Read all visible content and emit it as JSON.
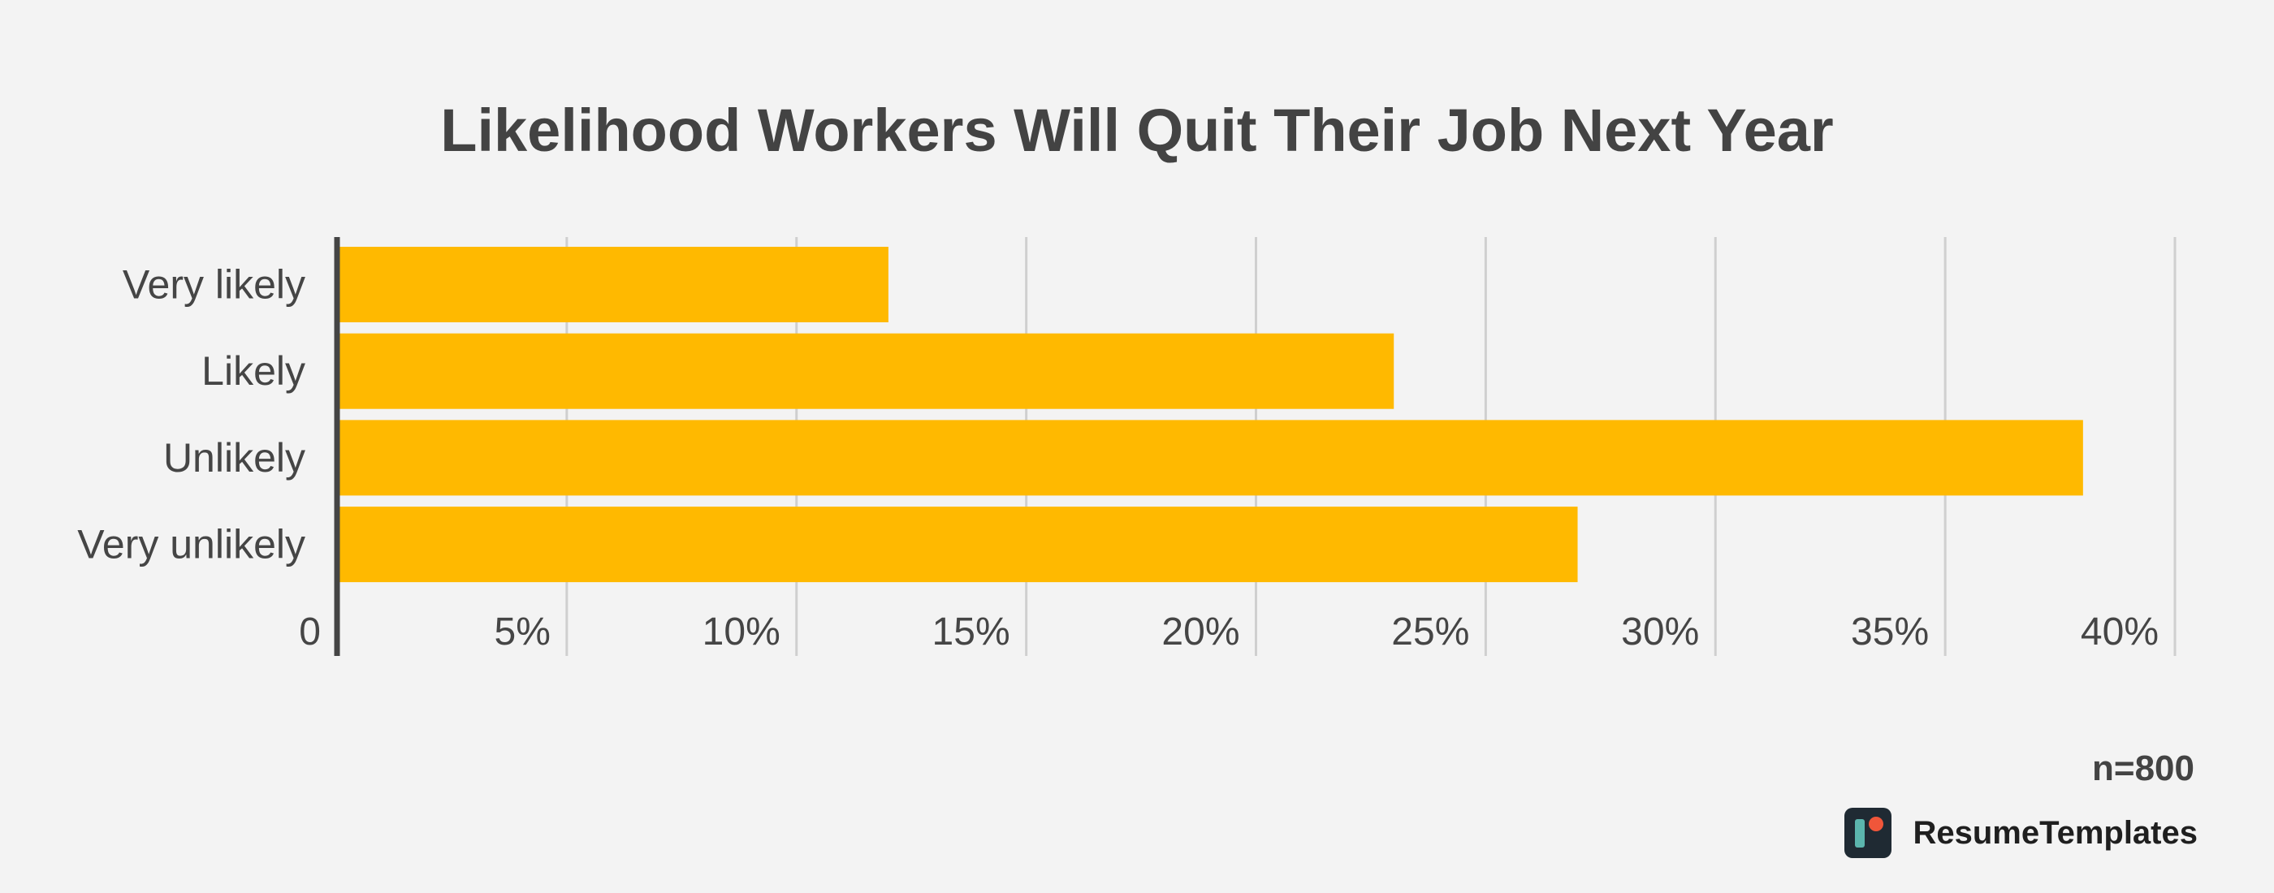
{
  "chart_data": {
    "type": "bar",
    "orientation": "horizontal",
    "title": "Likelihood Workers Will Quit Their Job Next Year",
    "categories": [
      "Very likely",
      "Likely",
      "Unlikely",
      "Very unlikely"
    ],
    "values": [
      12,
      23,
      38,
      27
    ],
    "unit": "%",
    "xlim": [
      0,
      40
    ],
    "xticks": [
      0,
      5,
      10,
      15,
      20,
      25,
      30,
      35,
      40
    ],
    "xtick_labels": [
      "0",
      "5%",
      "10%",
      "15%",
      "20%",
      "25%",
      "30%",
      "35%",
      "40%"
    ],
    "xlabel": "",
    "ylabel": "",
    "grid": true,
    "bar_color": "#ffb900"
  },
  "footnote": "n=800",
  "brand": {
    "name": "ResumeTemplates",
    "logo_icon": "resumetemplates-logo-icon",
    "colors": {
      "tile": "#1f2a33",
      "bar": "#5bb5ad",
      "dot": "#f0563a"
    }
  }
}
